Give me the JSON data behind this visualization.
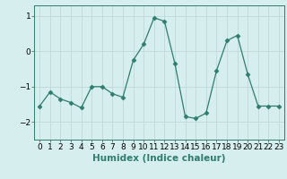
{
  "title": "",
  "xlabel": "Humidex (Indice chaleur)",
  "ylabel": "",
  "x": [
    0,
    1,
    2,
    3,
    4,
    5,
    6,
    7,
    8,
    9,
    10,
    11,
    12,
    13,
    14,
    15,
    16,
    17,
    18,
    19,
    20,
    21,
    22,
    23
  ],
  "y": [
    -1.55,
    -1.15,
    -1.35,
    -1.45,
    -1.6,
    -1.0,
    -1.0,
    -1.2,
    -1.3,
    -0.25,
    0.2,
    0.95,
    0.85,
    -0.35,
    -1.85,
    -1.9,
    -1.75,
    -0.55,
    0.3,
    0.45,
    -0.65,
    -1.55,
    -1.55,
    -1.55
  ],
  "line_color": "#2e7d6e",
  "marker": "D",
  "marker_size": 2.5,
  "bg_color": "#d6eeee",
  "grid_color": "#c0d8d8",
  "ylim": [
    -2.5,
    1.3
  ],
  "yticks": [
    -2,
    -1,
    0,
    1
  ],
  "xlim": [
    -0.5,
    23.5
  ],
  "label_fontsize": 7.5,
  "tick_fontsize": 6.5
}
